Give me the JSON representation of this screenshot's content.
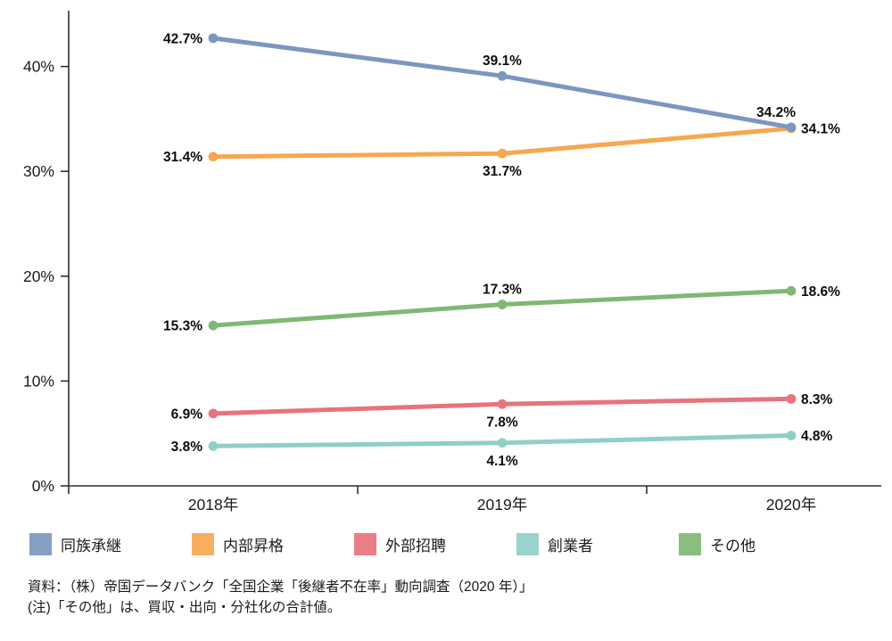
{
  "chart_data": {
    "type": "line",
    "title": "",
    "xlabel": "",
    "ylabel": "",
    "categories": [
      "2018年",
      "2019年",
      "2020年"
    ],
    "series": [
      {
        "name": "同族承継",
        "color": "#7b97c0",
        "values": [
          42.7,
          39.1,
          34.2
        ],
        "point_labels": [
          "42.7%",
          "39.1%",
          "34.2%"
        ]
      },
      {
        "name": "内部昇格",
        "color": "#f7a750",
        "values": [
          31.4,
          31.7,
          34.1
        ],
        "point_labels": [
          "31.4%",
          "31.7%",
          "34.1%"
        ]
      },
      {
        "name": "外部招聘",
        "color": "#e8737c",
        "values": [
          6.9,
          7.8,
          8.3
        ],
        "point_labels": [
          "6.9%",
          "7.8%",
          "8.3%"
        ]
      },
      {
        "name": "創業者",
        "color": "#90cfc8",
        "values": [
          3.8,
          4.1,
          4.8
        ],
        "point_labels": [
          "3.8%",
          "4.1%",
          "4.8%"
        ]
      },
      {
        "name": "その他",
        "color": "#7fb873",
        "values": [
          15.3,
          17.3,
          18.6
        ],
        "point_labels": [
          "15.3%",
          "17.3%",
          "18.6%"
        ]
      }
    ],
    "yticks": [
      {
        "value": 0,
        "label": "0%"
      },
      {
        "value": 10,
        "label": "10%"
      },
      {
        "value": 20,
        "label": "20%"
      },
      {
        "value": 30,
        "label": "30%"
      },
      {
        "value": 40,
        "label": "40%"
      }
    ],
    "ylim": [
      0,
      45.3
    ],
    "grid": false,
    "legend_position": "bottom",
    "label_anchors": [
      [
        "left",
        "above",
        "above-left"
      ],
      [
        "left",
        "below",
        "right"
      ],
      [
        "left",
        "below",
        "right"
      ],
      [
        "left",
        "below",
        "right"
      ],
      [
        "left",
        "above",
        "right"
      ]
    ],
    "axis_color": "#2f2f2f",
    "data_label_color": "#0d0d0d"
  },
  "footer": {
    "source": "資料：（株）帝国データバンク「全国企業「後継者不在率」動向調査（2020 年）」",
    "note": "(注)「その他」は、買収・出向・分社化の合計値。"
  }
}
